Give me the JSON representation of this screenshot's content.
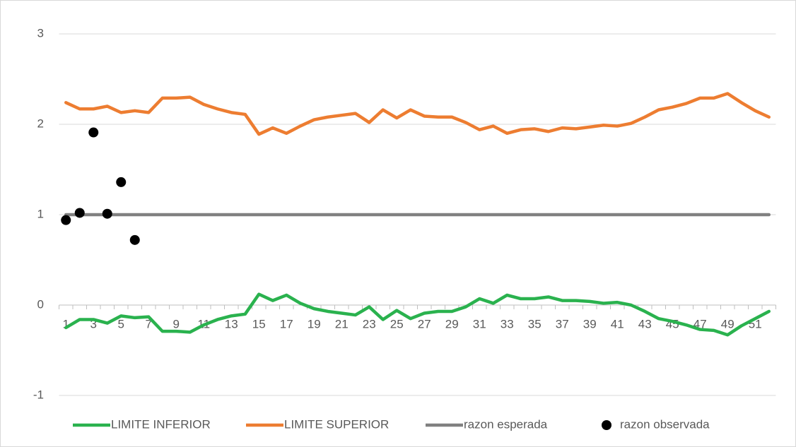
{
  "chart_data": {
    "type": "line",
    "categories": [
      1,
      null,
      3,
      null,
      5,
      null,
      7,
      null,
      9,
      null,
      11,
      null,
      13,
      null,
      15,
      null,
      17,
      null,
      19,
      null,
      21,
      null,
      23,
      null,
      25,
      null,
      27,
      null,
      29,
      null,
      31,
      null,
      33,
      null,
      35,
      null,
      37,
      null,
      39,
      null,
      41,
      null,
      43,
      null,
      45,
      null,
      47,
      null,
      49,
      null,
      51,
      null
    ],
    "series": [
      {
        "name": "LIMITE INFERIOR",
        "color": "#2ab24e",
        "style": "line",
        "values": [
          -0.25,
          -0.16,
          -0.16,
          -0.2,
          -0.12,
          -0.14,
          -0.13,
          -0.29,
          -0.29,
          -0.3,
          -0.22,
          -0.16,
          -0.12,
          -0.1,
          0.12,
          0.05,
          0.11,
          0.02,
          -0.04,
          -0.07,
          -0.09,
          -0.11,
          -0.02,
          -0.16,
          -0.06,
          -0.15,
          -0.09,
          -0.07,
          -0.07,
          -0.02,
          0.07,
          0.02,
          0.11,
          0.07,
          0.07,
          0.09,
          0.05,
          0.05,
          0.04,
          0.02,
          0.03,
          0.0,
          -0.07,
          -0.15,
          -0.18,
          -0.22,
          -0.27,
          -0.28,
          -0.33,
          -0.23,
          -0.15,
          -0.07
        ]
      },
      {
        "name": "LIMITE SUPERIOR",
        "color": "#ed7d31",
        "style": "line",
        "values": [
          2.24,
          2.17,
          2.17,
          2.2,
          2.13,
          2.15,
          2.13,
          2.29,
          2.29,
          2.3,
          2.22,
          2.17,
          2.13,
          2.11,
          1.89,
          1.96,
          1.9,
          1.98,
          2.05,
          2.08,
          2.1,
          2.12,
          2.02,
          2.16,
          2.07,
          2.16,
          2.09,
          2.08,
          2.08,
          2.02,
          1.94,
          1.98,
          1.9,
          1.94,
          1.95,
          1.92,
          1.96,
          1.95,
          1.97,
          1.99,
          1.98,
          2.01,
          2.08,
          2.16,
          2.19,
          2.23,
          2.29,
          2.29,
          2.34,
          2.24,
          2.15,
          2.08
        ]
      },
      {
        "name": "razon esperada",
        "color": "#808080",
        "style": "line",
        "values": [
          1,
          1,
          1,
          1,
          1,
          1,
          1,
          1,
          1,
          1,
          1,
          1,
          1,
          1,
          1,
          1,
          1,
          1,
          1,
          1,
          1,
          1,
          1,
          1,
          1,
          1,
          1,
          1,
          1,
          1,
          1,
          1,
          1,
          1,
          1,
          1,
          1,
          1,
          1,
          1,
          1,
          1,
          1,
          1,
          1,
          1,
          1,
          1,
          1,
          1,
          1,
          1
        ]
      },
      {
        "name": "razon observada",
        "color": "#000000",
        "style": "markers",
        "values": [
          0.94,
          1.02,
          1.91,
          1.01,
          1.36,
          0.72,
          null,
          null,
          null,
          null,
          null,
          null,
          null,
          null,
          null,
          null,
          null,
          null,
          null,
          null,
          null,
          null,
          null,
          null,
          null,
          null,
          null,
          null,
          null,
          null,
          null,
          null,
          null,
          null,
          null,
          null,
          null,
          null,
          null,
          null,
          null,
          null,
          null,
          null,
          null,
          null,
          null,
          null,
          null,
          null,
          null,
          null
        ]
      }
    ],
    "ylim": [
      -1,
      3
    ],
    "yticks": [
      -1,
      0,
      1,
      2,
      3
    ],
    "grid": true,
    "legend": "bottom"
  }
}
